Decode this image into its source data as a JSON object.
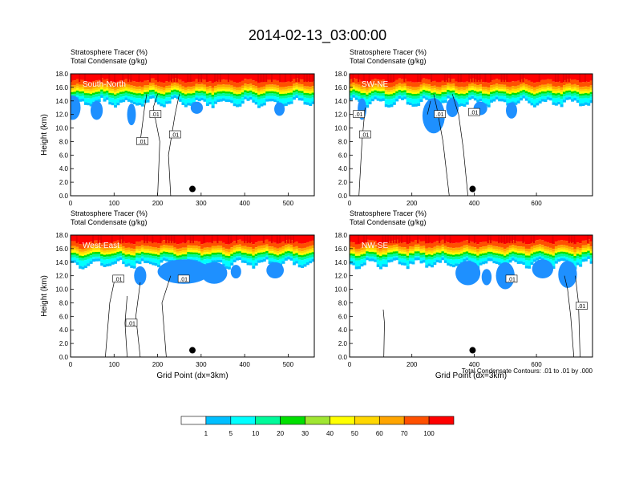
{
  "title": "2014-02-13_03:00:00",
  "panel_titles": {
    "line1": "Stratosphere Tracer   (%)",
    "line2": "Total Condensate   (g/kg)"
  },
  "footnote": "Total Condensate Contours: .01 to .01 by .000",
  "colors": {
    "levels": [
      "#ffffff",
      "#1e90ff",
      "#00bfff",
      "#00ffff",
      "#00fa9a",
      "#00e000",
      "#a0e632",
      "#ffff00",
      "#ffd700",
      "#ffa500",
      "#ff5000",
      "#ff0000"
    ]
  },
  "chart_data": [
    {
      "type": "heatmap",
      "region": "South-North",
      "ylabel": "Height (km)",
      "xlabel": "",
      "xlim": [
        0,
        560
      ],
      "ylim": [
        0,
        18
      ],
      "xticks": [
        "0",
        "100",
        "200",
        "300",
        "400",
        "500"
      ],
      "yticks": [
        "0.0",
        "2.0",
        "4.0",
        "6.0",
        "8.0",
        "10.0",
        "12.0",
        "14.0",
        "16.0",
        "18.0"
      ],
      "contour_labels": [
        ".01",
        ".01",
        ".01"
      ],
      "marker_x": 280
    },
    {
      "type": "heatmap",
      "region": "SW-NE",
      "ylabel": "",
      "xlabel": "",
      "xlim": [
        0,
        780
      ],
      "ylim": [
        0,
        18
      ],
      "xticks": [
        "0",
        "200",
        "400",
        "600"
      ],
      "yticks": [
        "0.0",
        "2.0",
        "4.0",
        "6.0",
        "8.0",
        "10.0",
        "12.0",
        "14.0",
        "16.0",
        "18.0"
      ],
      "contour_labels": [
        ".01",
        ".01",
        ".01",
        ".01"
      ],
      "marker_x": 395
    },
    {
      "type": "heatmap",
      "region": "West-East",
      "ylabel": "Height (km)",
      "xlabel": "Grid Point (dx=3km)",
      "xlim": [
        0,
        560
      ],
      "ylim": [
        0,
        18
      ],
      "xticks": [
        "0",
        "100",
        "200",
        "300",
        "400",
        "500"
      ],
      "yticks": [
        "0.0",
        "2.0",
        "4.0",
        "6.0",
        "8.0",
        "10.0",
        "12.0",
        "14.0",
        "16.0",
        "18.0"
      ],
      "contour_labels": [
        ".01",
        ".01",
        ".01"
      ],
      "marker_x": 280
    },
    {
      "type": "heatmap",
      "region": "NW-SE",
      "ylabel": "",
      "xlabel": "Grid Point (dx=3km)",
      "xlim": [
        0,
        780
      ],
      "ylim": [
        0,
        18
      ],
      "xticks": [
        "0",
        "200",
        "400",
        "600"
      ],
      "yticks": [
        "0.0",
        "2.0",
        "4.0",
        "6.0",
        "8.0",
        "10.0",
        "12.0",
        "14.0",
        "16.0",
        "18.0"
      ],
      "contour_labels": [
        ".01",
        ".01"
      ],
      "marker_x": 395
    }
  ],
  "colorbar": {
    "labels": [
      "1",
      "5",
      "10",
      "20",
      "30",
      "40",
      "50",
      "60",
      "70",
      "100"
    ]
  }
}
